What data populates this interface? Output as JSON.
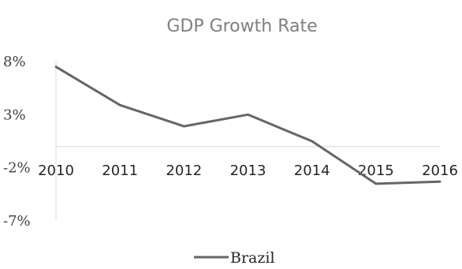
{
  "chart_data": {
    "type": "line",
    "title": "GDP Growth Rate",
    "xlabel": "",
    "ylabel": "",
    "categories": [
      "2010",
      "2011",
      "2012",
      "2013",
      "2014",
      "2015",
      "2016"
    ],
    "series": [
      {
        "name": "Brazil",
        "values": [
          7.5,
          3.9,
          1.9,
          3.0,
          0.5,
          -3.5,
          -3.3
        ],
        "color": "#666666"
      }
    ],
    "ylim": [
      -7,
      8
    ],
    "yticks": [
      8,
      3,
      -2,
      -7
    ],
    "ytick_labels": [
      "8%",
      "3%",
      "-2%",
      "-7%"
    ],
    "gridlines": false,
    "legend_position": "bottom"
  }
}
